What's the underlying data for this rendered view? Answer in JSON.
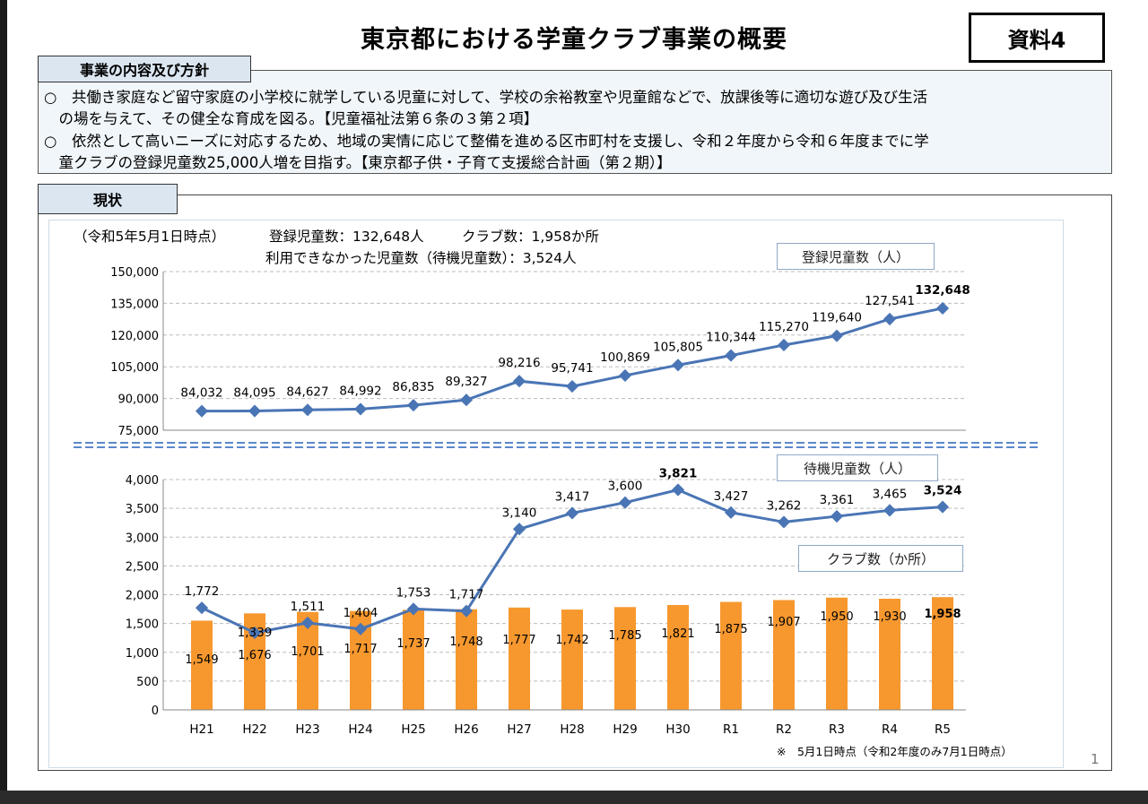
{
  "title": "東京都における学童クラブ事業の概要",
  "doc_label": "資料4",
  "policy": {
    "heading": "事業の内容及び方針",
    "bullet1_line1": "○　共働き家庭など留守家庭の小学校に就学している児童に対して、学校の余裕教室や児童館などで、放課後等に適切な遊び及び生活",
    "bullet1_line2": "　の場を与えて、その健全な育成を図る。【児童福祉法第６条の３第２項】",
    "bullet2_line1": "○　依然として高いニーズに対応するため、地域の実情に応じて整備を進める区市町村を支援し、令和２年度から令和６年度までに学",
    "bullet2_line2": "　童クラブの登録児童数25,000人増を目指す。【東京都子供・子育て支援総合計画（第２期）】"
  },
  "status": {
    "heading": "現状",
    "as_of": "（令和5年5月1日時点）",
    "registered": "登録児童数：132,648人",
    "clubs": "クラブ数：1,958か所",
    "waitlist": "利用できなかった児童数（待機児童数）：3,524人",
    "footnote": "※　5月1日時点（令和2年度のみ7月1日時点）"
  },
  "page_number": "1",
  "colors": {
    "line": "#4a75b5",
    "bar": "#f7982e",
    "grid": "#bbbbbb",
    "separator": "#5b88c9",
    "section_fill": "#dbe6f1"
  },
  "chart_data": [
    {
      "type": "line",
      "legend": "登録児童数（人）",
      "categories": [
        "H21",
        "H22",
        "H23",
        "H24",
        "H25",
        "H26",
        "H27",
        "H28",
        "H29",
        "H30",
        "R1",
        "R2",
        "R3",
        "R4",
        "R5"
      ],
      "values": [
        84032,
        84095,
        84627,
        84992,
        86835,
        89327,
        98216,
        95741,
        100869,
        105805,
        110344,
        115270,
        119640,
        127541,
        132648
      ],
      "labels": [
        "84,032",
        "84,095",
        "84,627",
        "84,992",
        "86,835",
        "89,327",
        "98,216",
        "95,741",
        "100,869",
        "105,805",
        "110,344",
        "115,270",
        "119,640",
        "127,541",
        "132,648"
      ],
      "ylim": [
        75000,
        150000
      ],
      "yticks": [
        "75,000",
        "90,000",
        "105,000",
        "120,000",
        "135,000",
        "150,000"
      ],
      "ytick_values": [
        75000,
        90000,
        105000,
        120000,
        135000,
        150000
      ]
    },
    {
      "type": "bar+line",
      "categories": [
        "H21",
        "H22",
        "H23",
        "H24",
        "H25",
        "H26",
        "H27",
        "H28",
        "H29",
        "H30",
        "R1",
        "R2",
        "R3",
        "R4",
        "R5"
      ],
      "series": [
        {
          "name": "待機児童数（人）",
          "type": "line",
          "values": [
            1772,
            1339,
            1511,
            1404,
            1753,
            1717,
            3140,
            3417,
            3600,
            3821,
            3427,
            3262,
            3361,
            3465,
            3524
          ],
          "labels": [
            "1,772",
            "1,339",
            "1,511",
            "1,404",
            "1,753",
            "1,717",
            "3,140",
            "3,417",
            "3,600",
            "3,821",
            "3,427",
            "3,262",
            "3,361",
            "3,465",
            "3,524"
          ]
        },
        {
          "name": "クラブ数（か所）",
          "type": "bar",
          "values": [
            1549,
            1676,
            1701,
            1717,
            1737,
            1748,
            1777,
            1742,
            1785,
            1821,
            1875,
            1907,
            1950,
            1930,
            1958
          ],
          "labels": [
            "1,549",
            "1,676",
            "1,701",
            "1,717",
            "1,737",
            "1,748",
            "1,777",
            "1,742",
            "1,785",
            "1,821",
            "1,875",
            "1,907",
            "1,950",
            "1,930",
            "1,958"
          ]
        }
      ],
      "ylim": [
        0,
        4000
      ],
      "yticks": [
        "0",
        "500",
        "1,000",
        "1,500",
        "2,000",
        "2,500",
        "3,000",
        "3,500",
        "4,000"
      ],
      "ytick_values": [
        0,
        500,
        1000,
        1500,
        2000,
        2500,
        3000,
        3500,
        4000
      ]
    }
  ]
}
